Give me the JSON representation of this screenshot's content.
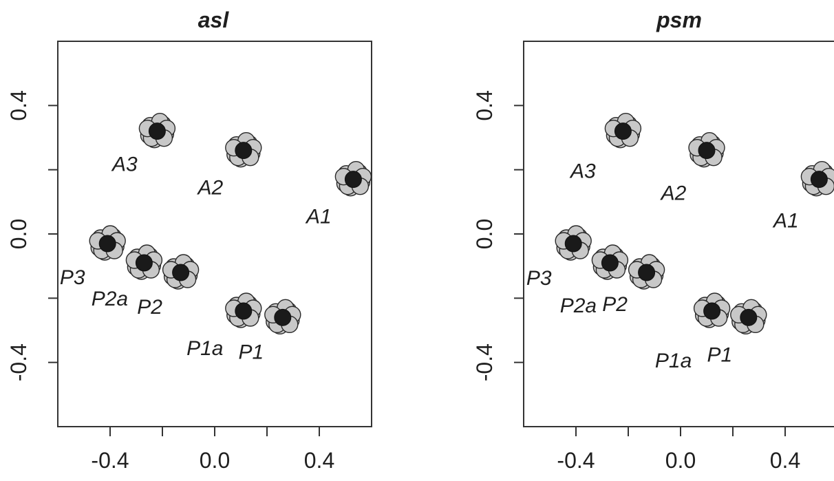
{
  "chart_data": [
    {
      "type": "scatter",
      "title": "asl",
      "xlim": [
        -0.6,
        0.6
      ],
      "ylim": [
        -0.6,
        0.6
      ],
      "xticks": [
        -0.4,
        -0.2,
        0.0,
        0.2,
        0.4
      ],
      "xtick_labels": [
        "-0.4",
        "",
        "0.0",
        "",
        "0.4"
      ],
      "yticks": [
        -0.4,
        -0.2,
        0.0,
        0.2,
        0.4
      ],
      "ytick_labels": [
        "-0.4",
        "",
        "0.0",
        "",
        "0.4"
      ],
      "grid": false,
      "series": [
        {
          "label": "A1",
          "x": 0.53,
          "y": 0.17
        },
        {
          "label": "A2",
          "x": 0.11,
          "y": 0.26
        },
        {
          "label": "A3",
          "x": -0.22,
          "y": 0.32
        },
        {
          "label": "P1",
          "x": 0.26,
          "y": -0.26
        },
        {
          "label": "P1a",
          "x": 0.11,
          "y": -0.24
        },
        {
          "label": "P2",
          "x": -0.13,
          "y": -0.12
        },
        {
          "label": "P2a",
          "x": -0.27,
          "y": -0.09
        },
        {
          "label": "P3",
          "x": -0.41,
          "y": -0.03
        }
      ]
    },
    {
      "type": "scatter",
      "title": "psm",
      "xlim": [
        -0.6,
        0.6
      ],
      "ylim": [
        -0.6,
        0.6
      ],
      "xticks": [
        -0.4,
        -0.2,
        0.0,
        0.2,
        0.4
      ],
      "xtick_labels": [
        "-0.4",
        "",
        "0.0",
        "",
        "0.4"
      ],
      "yticks": [
        -0.4,
        -0.2,
        0.0,
        0.2,
        0.4
      ],
      "ytick_labels": [
        "-0.4",
        "",
        "0.0",
        "",
        "0.4"
      ],
      "grid": false,
      "series": [
        {
          "label": "A1",
          "x": 0.53,
          "y": 0.17
        },
        {
          "label": "A2",
          "x": 0.1,
          "y": 0.26
        },
        {
          "label": "A3",
          "x": -0.22,
          "y": 0.32
        },
        {
          "label": "P1",
          "x": 0.26,
          "y": -0.26
        },
        {
          "label": "P1a",
          "x": 0.12,
          "y": -0.24
        },
        {
          "label": "P2",
          "x": -0.13,
          "y": -0.12
        },
        {
          "label": "P2a",
          "x": -0.27,
          "y": -0.09
        },
        {
          "label": "P3",
          "x": -0.41,
          "y": -0.03
        }
      ]
    }
  ]
}
